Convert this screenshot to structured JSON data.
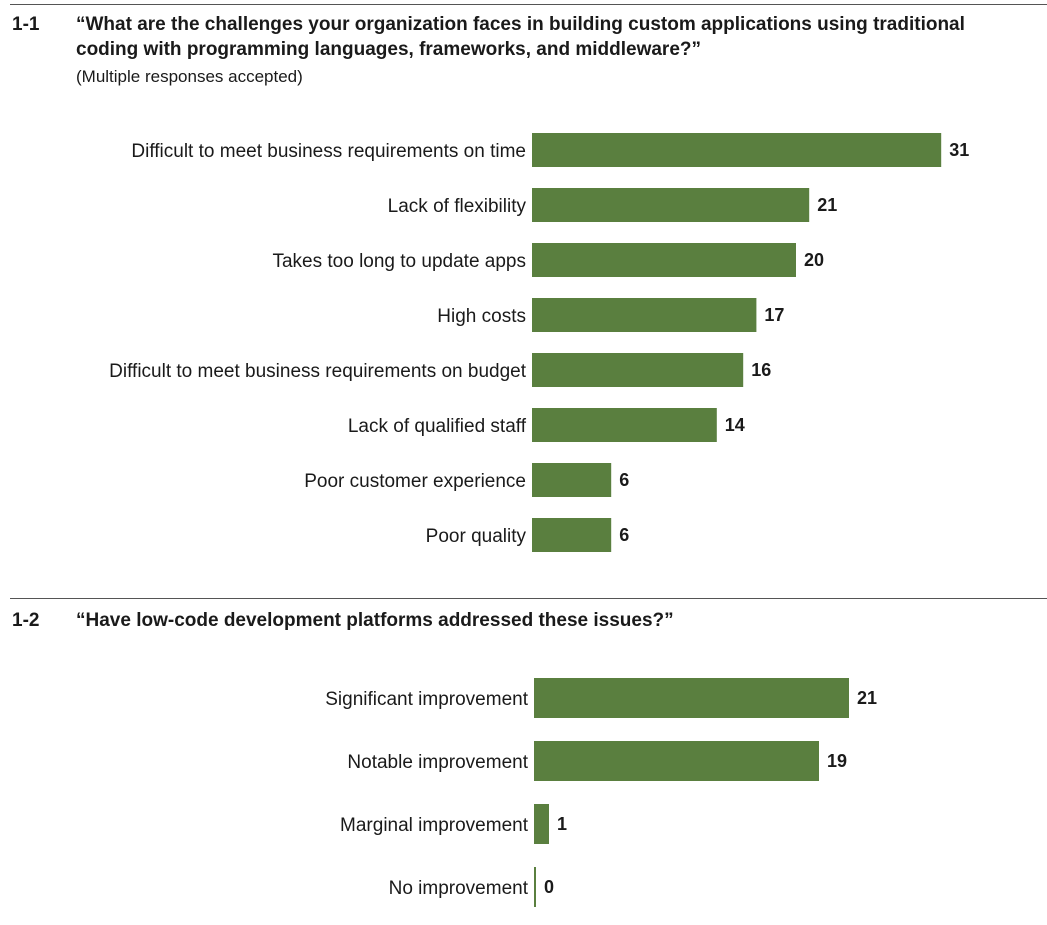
{
  "colors": {
    "bar": "#5a7f3f",
    "text": "#1a1a1a",
    "rule": "#555555"
  },
  "chart_data": [
    {
      "type": "bar",
      "orientation": "horizontal",
      "figure_number": "1-1",
      "title": "“What are the challenges your organization faces in building custom applications using traditional coding with programming languages, frameworks, and middleware?”",
      "subtitle": "(Multiple responses accepted)",
      "categories": [
        "Difficult to meet business requirements on time",
        "Lack of flexibility",
        "Takes too long to update apps",
        "High costs",
        "Difficult to meet business requirements on budget",
        "Lack of qualified staff",
        "Poor customer experience",
        "Poor quality"
      ],
      "values": [
        31,
        21,
        20,
        17,
        16,
        14,
        6,
        6
      ],
      "data_labels": [
        "31",
        "21",
        "20",
        "17",
        "16",
        "14",
        "6",
        "6"
      ]
    },
    {
      "type": "bar",
      "orientation": "horizontal",
      "figure_number": "1-2",
      "title": "“Have low-code development platforms addressed these issues?”",
      "categories": [
        "Significant improvement",
        "Notable improvement",
        "Marginal improvement",
        "No improvement"
      ],
      "values": [
        21,
        19,
        1,
        0
      ],
      "data_labels": [
        "21",
        "19",
        "1",
        "0"
      ]
    }
  ]
}
